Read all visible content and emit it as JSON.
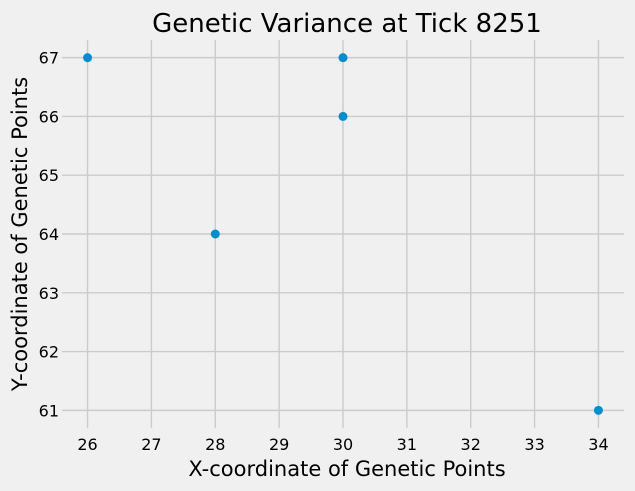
{
  "chart_data": {
    "type": "scatter",
    "title": "Genetic Variance at Tick 8251",
    "xlabel": "X-coordinate of Genetic Points",
    "ylabel": "Y-coordinate of Genetic Points",
    "xlim": [
      25.6,
      34.4
    ],
    "ylim": [
      60.7,
      67.3
    ],
    "x_ticks": [
      26,
      27,
      28,
      29,
      30,
      31,
      32,
      33,
      34
    ],
    "y_ticks": [
      61,
      62,
      63,
      64,
      65,
      66,
      67
    ],
    "grid": true,
    "point_color": "#008fd5",
    "background_color": "#f0f0f0",
    "grid_color": "#cbcbcb",
    "points": [
      {
        "x": 26,
        "y": 67
      },
      {
        "x": 30,
        "y": 67
      },
      {
        "x": 30,
        "y": 66
      },
      {
        "x": 28,
        "y": 64
      },
      {
        "x": 34,
        "y": 61
      }
    ]
  }
}
